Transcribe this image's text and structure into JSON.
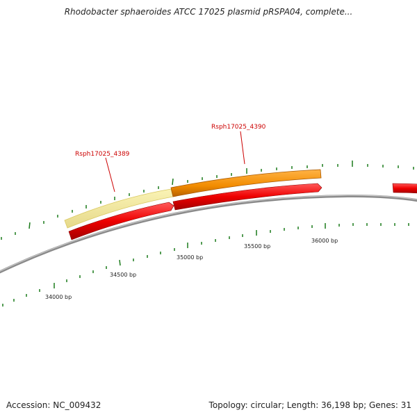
{
  "title": "Rhodobacter sphaeroides ATCC 17025 plasmid pRSPA04, complete...",
  "genes": [
    {
      "name": "Rsph17025_4389",
      "label_color": "#cc0000"
    },
    {
      "name": "Rsph17025_4390",
      "label_color": "#cc0000"
    }
  ],
  "scale_labels": [
    "34000 bp",
    "34500 bp",
    "35000 bp",
    "35500 bp",
    "36000 bp"
  ],
  "footer": {
    "accession": "Accession: NC_009432",
    "summary": "Topology: circular; Length: 36,198 bp; Genes: 31"
  },
  "colors": {
    "backbone": "#8a8a8a",
    "cds_red": "#ee0000",
    "gene_pale": "#f0e68c",
    "gene_orange": "#f28c00",
    "ticks": "#1a7a1a",
    "gene_label": "#cc0000"
  }
}
